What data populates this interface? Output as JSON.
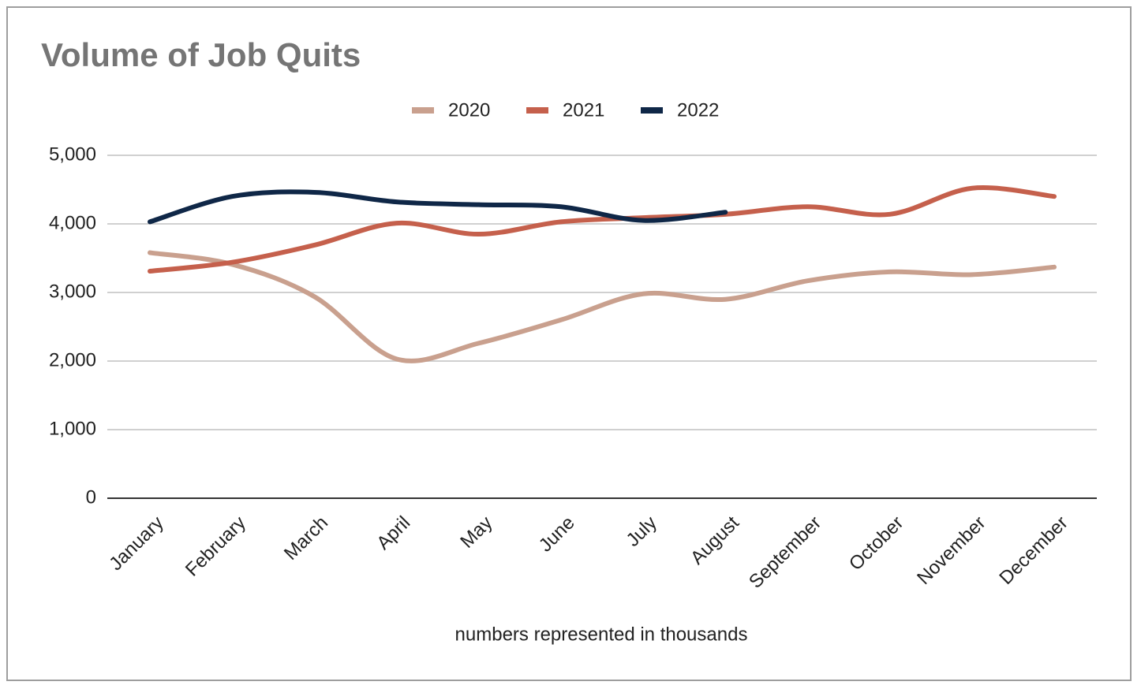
{
  "chart_data": {
    "type": "line",
    "title": "Volume of Job Quits",
    "xlabel": "numbers represented in thousands",
    "categories": [
      "January",
      "February",
      "March",
      "April",
      "May",
      "June",
      "July",
      "August",
      "September",
      "October",
      "November",
      "December"
    ],
    "series": [
      {
        "name": "2020",
        "color": "#c9a08e",
        "values": [
          3580,
          3410,
          2940,
          2030,
          2260,
          2600,
          2980,
          2900,
          3170,
          3300,
          3260,
          3370
        ]
      },
      {
        "name": "2021",
        "color": "#c5604c",
        "values": [
          3310,
          3440,
          3690,
          4010,
          3850,
          4030,
          4090,
          4140,
          4250,
          4140,
          4520,
          4400
        ]
      },
      {
        "name": "2022",
        "color": "#0f2747",
        "values": [
          4030,
          4400,
          4460,
          4320,
          4280,
          4250,
          4050,
          4170,
          null,
          null,
          null,
          null
        ]
      }
    ],
    "ylim": [
      0,
      5000
    ],
    "yticks": [
      0,
      {
        "value": 1000,
        "label": "1,000"
      },
      {
        "value": 2000,
        "label": "2,000"
      },
      {
        "value": 3000,
        "label": "3,000"
      },
      {
        "value": 4000,
        "label": "4,000"
      },
      {
        "value": 5000,
        "label": "5,000"
      }
    ],
    "grid": true,
    "legend": "top"
  }
}
